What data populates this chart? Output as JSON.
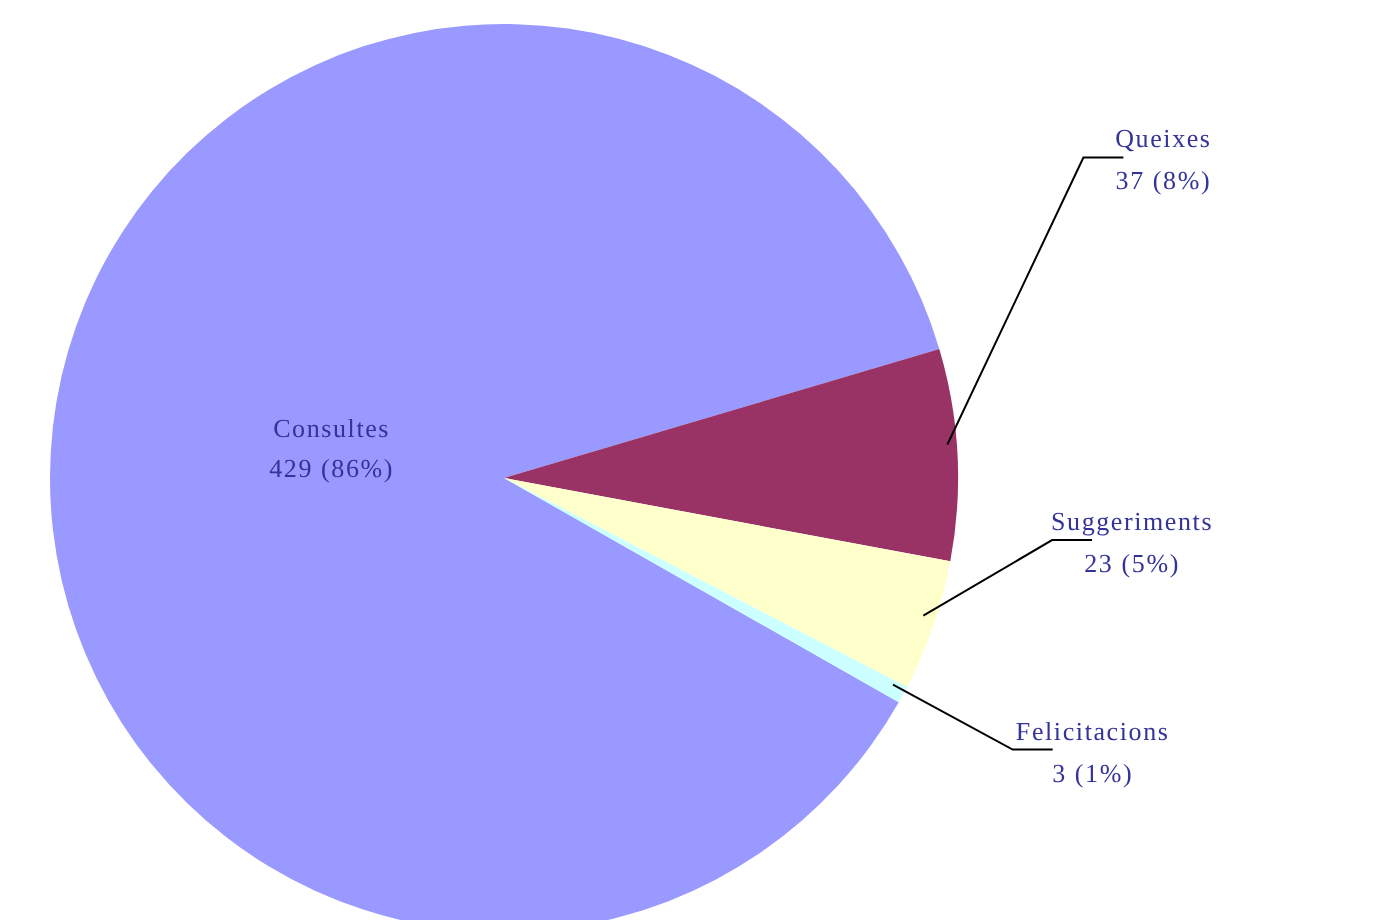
{
  "chart_data": {
    "type": "pie",
    "categories": [
      "Consultes",
      "Queixes",
      "Suggeriments",
      "Felicitacions"
    ],
    "values": [
      429,
      37,
      23,
      3
    ],
    "value_labels": [
      "429 (86%)",
      "37 (8%)",
      "23 (5%)",
      "3 (1%)"
    ],
    "colors": [
      "#9999ff",
      "#993366",
      "#ffffcc",
      "#ccffff"
    ]
  }
}
